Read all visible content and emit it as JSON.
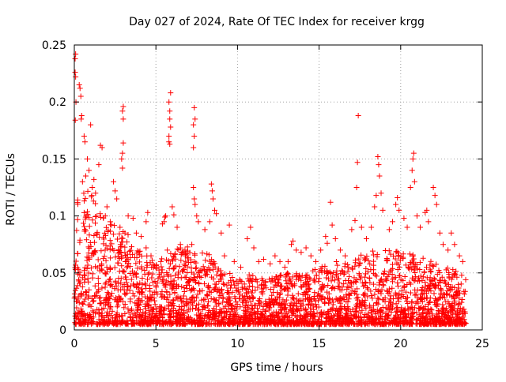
{
  "chart_data": {
    "type": "scatter",
    "title": "Day 027 of 2024, Rate Of TEC Index for receiver krgg",
    "xlabel": "GPS time / hours",
    "ylabel": "ROTI / TECUs",
    "xlim": [
      0,
      25
    ],
    "ylim": [
      0,
      0.25
    ],
    "x_ticks": [
      "0",
      "5",
      "10",
      "15",
      "20",
      "25"
    ],
    "y_ticks": [
      "0",
      "0.05",
      "0.1",
      "0.15",
      "0.2",
      "0.25"
    ],
    "grid": true,
    "marker": "+",
    "marker_color": "#ff0000",
    "series": [
      {
        "points": [
          [
            0.05,
            0.238
          ],
          [
            0.05,
            0.226
          ],
          [
            0.08,
            0.242
          ],
          [
            0.08,
            0.222
          ],
          [
            0.1,
            0.2
          ],
          [
            0.06,
            0.184
          ],
          [
            0.3,
            0.215
          ],
          [
            0.35,
            0.212
          ],
          [
            0.4,
            0.205
          ],
          [
            0.45,
            0.188
          ],
          [
            0.42,
            0.185
          ],
          [
            0.6,
            0.17
          ],
          [
            0.65,
            0.165
          ],
          [
            0.8,
            0.15
          ],
          [
            0.9,
            0.14
          ],
          [
            1.0,
            0.18
          ],
          [
            1.1,
            0.125
          ],
          [
            1.2,
            0.132
          ],
          [
            0.5,
            0.13
          ],
          [
            0.7,
            0.135
          ],
          [
            1.3,
            0.12
          ],
          [
            1.6,
            0.162
          ],
          [
            1.7,
            0.16
          ],
          [
            1.5,
            0.145
          ],
          [
            1.9,
            0.1
          ],
          [
            2.0,
            0.108
          ],
          [
            2.4,
            0.13
          ],
          [
            2.5,
            0.122
          ],
          [
            2.6,
            0.115
          ],
          [
            2.2,
            0.095
          ],
          [
            2.8,
            0.09
          ],
          [
            2.95,
            0.192
          ],
          [
            3.0,
            0.196
          ],
          [
            3.0,
            0.185
          ],
          [
            3.0,
            0.164
          ],
          [
            2.95,
            0.155
          ],
          [
            2.9,
            0.15
          ],
          [
            2.95,
            0.142
          ],
          [
            3.3,
            0.1
          ],
          [
            3.6,
            0.098
          ],
          [
            3.8,
            0.085
          ],
          [
            4.1,
            0.082
          ],
          [
            4.4,
            0.095
          ],
          [
            4.5,
            0.103
          ],
          [
            4.4,
            0.072
          ],
          [
            4.7,
            0.065
          ],
          [
            5.0,
            0.055
          ],
          [
            5.3,
            0.06
          ],
          [
            5.4,
            0.093
          ],
          [
            5.5,
            0.095
          ],
          [
            5.6,
            0.1
          ],
          [
            5.55,
            0.099
          ],
          [
            5.7,
            0.07
          ],
          [
            5.8,
            0.2
          ],
          [
            5.85,
            0.192
          ],
          [
            5.9,
            0.208
          ],
          [
            5.85,
            0.185
          ],
          [
            5.9,
            0.178
          ],
          [
            5.8,
            0.17
          ],
          [
            5.8,
            0.165
          ],
          [
            5.85,
            0.163
          ],
          [
            6.0,
            0.108
          ],
          [
            6.1,
            0.101
          ],
          [
            6.3,
            0.09
          ],
          [
            6.5,
            0.075
          ],
          [
            6.8,
            0.065
          ],
          [
            7.2,
            0.075
          ],
          [
            7.3,
            0.18
          ],
          [
            7.35,
            0.195
          ],
          [
            7.4,
            0.185
          ],
          [
            7.35,
            0.17
          ],
          [
            7.3,
            0.16
          ],
          [
            7.3,
            0.125
          ],
          [
            7.35,
            0.115
          ],
          [
            7.4,
            0.11
          ],
          [
            7.5,
            0.1
          ],
          [
            7.6,
            0.095
          ],
          [
            8.0,
            0.088
          ],
          [
            8.3,
            0.095
          ],
          [
            8.4,
            0.128
          ],
          [
            8.45,
            0.122
          ],
          [
            8.5,
            0.115
          ],
          [
            8.6,
            0.105
          ],
          [
            8.7,
            0.102
          ],
          [
            9.0,
            0.085
          ],
          [
            9.2,
            0.065
          ],
          [
            9.5,
            0.092
          ],
          [
            9.8,
            0.06
          ],
          [
            10.2,
            0.055
          ],
          [
            10.6,
            0.08
          ],
          [
            10.8,
            0.09
          ],
          [
            11.0,
            0.072
          ],
          [
            11.3,
            0.06
          ],
          [
            11.6,
            0.062
          ],
          [
            12.0,
            0.058
          ],
          [
            12.3,
            0.065
          ],
          [
            12.6,
            0.06
          ],
          [
            12.9,
            0.055
          ],
          [
            13.1,
            0.06
          ],
          [
            13.3,
            0.075
          ],
          [
            13.4,
            0.078
          ],
          [
            13.6,
            0.07
          ],
          [
            13.9,
            0.068
          ],
          [
            14.2,
            0.072
          ],
          [
            14.5,
            0.065
          ],
          [
            14.8,
            0.06
          ],
          [
            15.1,
            0.07
          ],
          [
            15.4,
            0.082
          ],
          [
            15.5,
            0.076
          ],
          [
            15.7,
            0.112
          ],
          [
            15.8,
            0.092
          ],
          [
            16.0,
            0.08
          ],
          [
            16.3,
            0.07
          ],
          [
            16.6,
            0.065
          ],
          [
            17.0,
            0.088
          ],
          [
            17.2,
            0.096
          ],
          [
            17.4,
            0.188
          ],
          [
            17.35,
            0.147
          ],
          [
            17.3,
            0.125
          ],
          [
            17.6,
            0.09
          ],
          [
            17.9,
            0.08
          ],
          [
            18.2,
            0.09
          ],
          [
            18.4,
            0.108
          ],
          [
            18.5,
            0.118
          ],
          [
            18.6,
            0.152
          ],
          [
            18.65,
            0.145
          ],
          [
            18.7,
            0.135
          ],
          [
            18.8,
            0.12
          ],
          [
            18.9,
            0.105
          ],
          [
            19.3,
            0.088
          ],
          [
            19.5,
            0.095
          ],
          [
            19.7,
            0.11
          ],
          [
            19.8,
            0.116
          ],
          [
            19.9,
            0.105
          ],
          [
            20.2,
            0.098
          ],
          [
            20.4,
            0.09
          ],
          [
            20.6,
            0.125
          ],
          [
            20.7,
            0.14
          ],
          [
            20.8,
            0.155
          ],
          [
            20.75,
            0.15
          ],
          [
            20.85,
            0.13
          ],
          [
            21.0,
            0.1
          ],
          [
            21.2,
            0.09
          ],
          [
            21.5,
            0.103
          ],
          [
            21.6,
            0.105
          ],
          [
            21.7,
            0.095
          ],
          [
            22.0,
            0.125
          ],
          [
            22.1,
            0.118
          ],
          [
            22.2,
            0.11
          ],
          [
            22.4,
            0.085
          ],
          [
            22.6,
            0.075
          ],
          [
            22.9,
            0.07
          ],
          [
            23.1,
            0.085
          ],
          [
            23.3,
            0.075
          ],
          [
            23.6,
            0.065
          ],
          [
            23.8,
            0.06
          ]
        ]
      }
    ],
    "dense_band": {
      "description_free": true,
      "x_start": 0.0,
      "x_end": 24.0,
      "envelope": [
        [
          0,
          0.13
        ],
        [
          1,
          0.12
        ],
        [
          2,
          0.1
        ],
        [
          3,
          0.09
        ],
        [
          4,
          0.07
        ],
        [
          5,
          0.06
        ],
        [
          6,
          0.07
        ],
        [
          7,
          0.075
        ],
        [
          8,
          0.07
        ],
        [
          9,
          0.055
        ],
        [
          10,
          0.045
        ],
        [
          11,
          0.05
        ],
        [
          12,
          0.045
        ],
        [
          13,
          0.05
        ],
        [
          14,
          0.05
        ],
        [
          15,
          0.055
        ],
        [
          16,
          0.06
        ],
        [
          17,
          0.06
        ],
        [
          18,
          0.07
        ],
        [
          19,
          0.07
        ],
        [
          20,
          0.07
        ],
        [
          21,
          0.065
        ],
        [
          22,
          0.06
        ],
        [
          23,
          0.055
        ],
        [
          24,
          0.05
        ]
      ],
      "floor": 0.005
    }
  }
}
